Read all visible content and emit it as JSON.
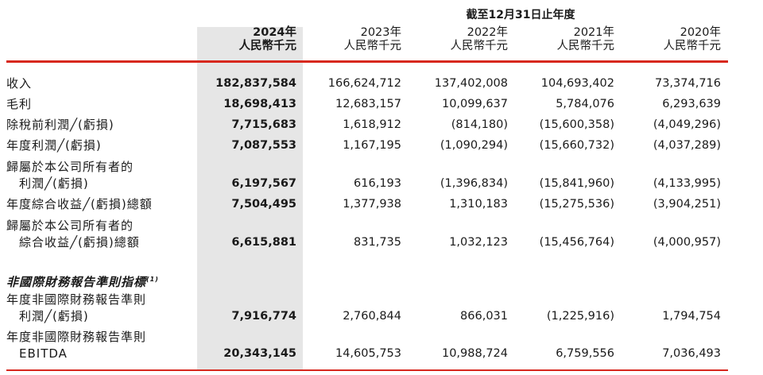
{
  "header": {
    "period_title": "截至12月31日止年度",
    "columns": [
      {
        "year": "2024年",
        "unit": "人民幣千元"
      },
      {
        "year": "2023年",
        "unit": "人民幣千元"
      },
      {
        "year": "2022年",
        "unit": "人民幣千元"
      },
      {
        "year": "2021年",
        "unit": "人民幣千元"
      },
      {
        "year": "2020年",
        "unit": "人民幣千元"
      }
    ]
  },
  "colors": {
    "accent_line": "#d7281e",
    "highlight_column": "#e6e6e6"
  },
  "rows": [
    {
      "label": "收入",
      "values": [
        "182,837,584",
        "166,624,712",
        "137,402,008",
        "104,693,402",
        "73,374,716"
      ]
    },
    {
      "label": "毛利",
      "values": [
        "18,698,413",
        "12,683,157",
        "10,099,637",
        "5,784,076",
        "6,293,639"
      ]
    },
    {
      "label": "除稅前利潤╱(虧損)",
      "values": [
        "7,715,683",
        "1,618,912",
        "(814,180)",
        "(15,600,358)",
        "(4,049,296)"
      ]
    },
    {
      "label": "年度利潤╱(虧損)",
      "values": [
        "7,087,553",
        "1,167,195",
        "(1,090,294)",
        "(15,660,732)",
        "(4,037,289)"
      ]
    },
    {
      "label": "歸屬於本公司所有者的",
      "label2": "利潤╱(虧損)",
      "values": [
        "6,197,567",
        "616,193",
        "(1,396,834)",
        "(15,841,960)",
        "(4,133,995)"
      ]
    },
    {
      "label": "年度綜合收益╱(虧損)總額",
      "values": [
        "7,504,495",
        "1,377,938",
        "1,310,183",
        "(15,275,536)",
        "(3,904,251)"
      ]
    },
    {
      "label": "歸屬於本公司所有者的",
      "label2": "綜合收益╱(虧損)總額",
      "values": [
        "6,615,881",
        "831,735",
        "1,032,123",
        "(15,456,764)",
        "(4,000,957)"
      ]
    }
  ],
  "non_ifrs": {
    "title": "非國際財務報告準則指標",
    "footnote": "(1)",
    "rows": [
      {
        "label": "年度非國際財務報告準則",
        "label2": "利潤╱(虧損)",
        "values": [
          "7,916,774",
          "2,760,844",
          "866,031",
          "(1,225,916)",
          "1,794,754"
        ]
      },
      {
        "label": "年度非國際財務報告準則",
        "label2": "EBITDA",
        "values": [
          "20,343,145",
          "14,605,753",
          "10,988,724",
          "6,759,556",
          "7,036,493"
        ]
      }
    ]
  }
}
